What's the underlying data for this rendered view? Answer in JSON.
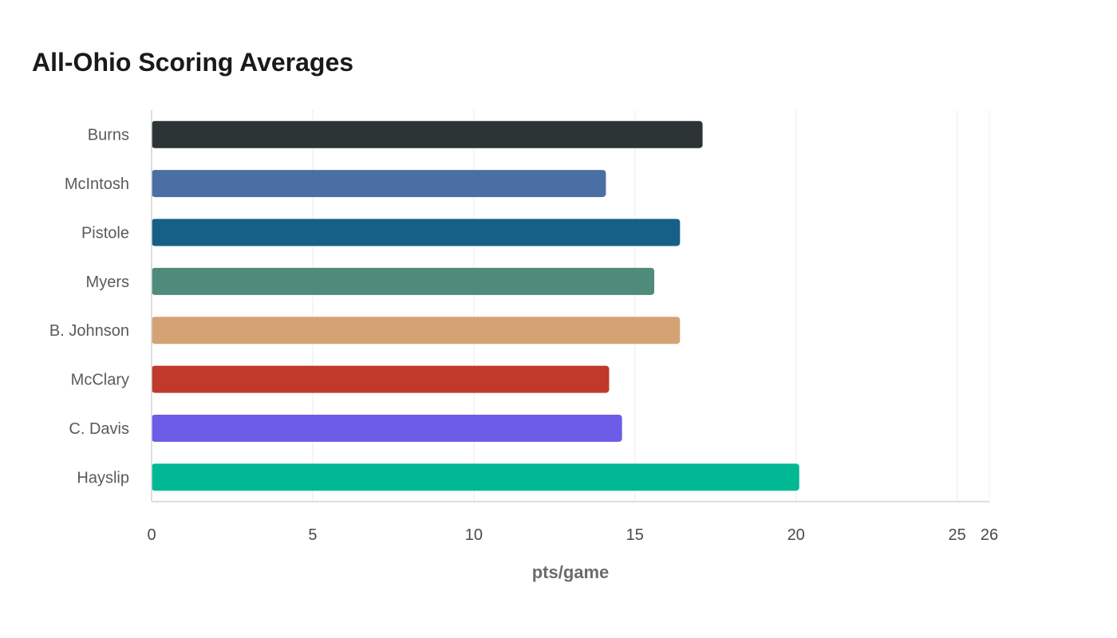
{
  "chart_data": {
    "type": "bar",
    "orientation": "horizontal",
    "title": "All-Ohio Scoring Averages",
    "xlabel": "pts/game",
    "ylabel": "",
    "categories": [
      "Burns",
      "McIntosh",
      "Pistole",
      "Myers",
      "B. Johnson",
      "McClary",
      "C. Davis",
      "Hayslip"
    ],
    "values": [
      17.1,
      14.1,
      16.4,
      15.6,
      16.4,
      14.2,
      14.6,
      20.1
    ],
    "colors": [
      "#2d3436",
      "#4a6fa5",
      "#166088",
      "#4e8b7a",
      "#d4a373",
      "#c0392b",
      "#6c5ce7",
      "#00b894"
    ],
    "xlim": [
      0,
      26
    ],
    "xticks": [
      0,
      5,
      10,
      15,
      20,
      25,
      26
    ],
    "grid": true,
    "legend": "none"
  }
}
